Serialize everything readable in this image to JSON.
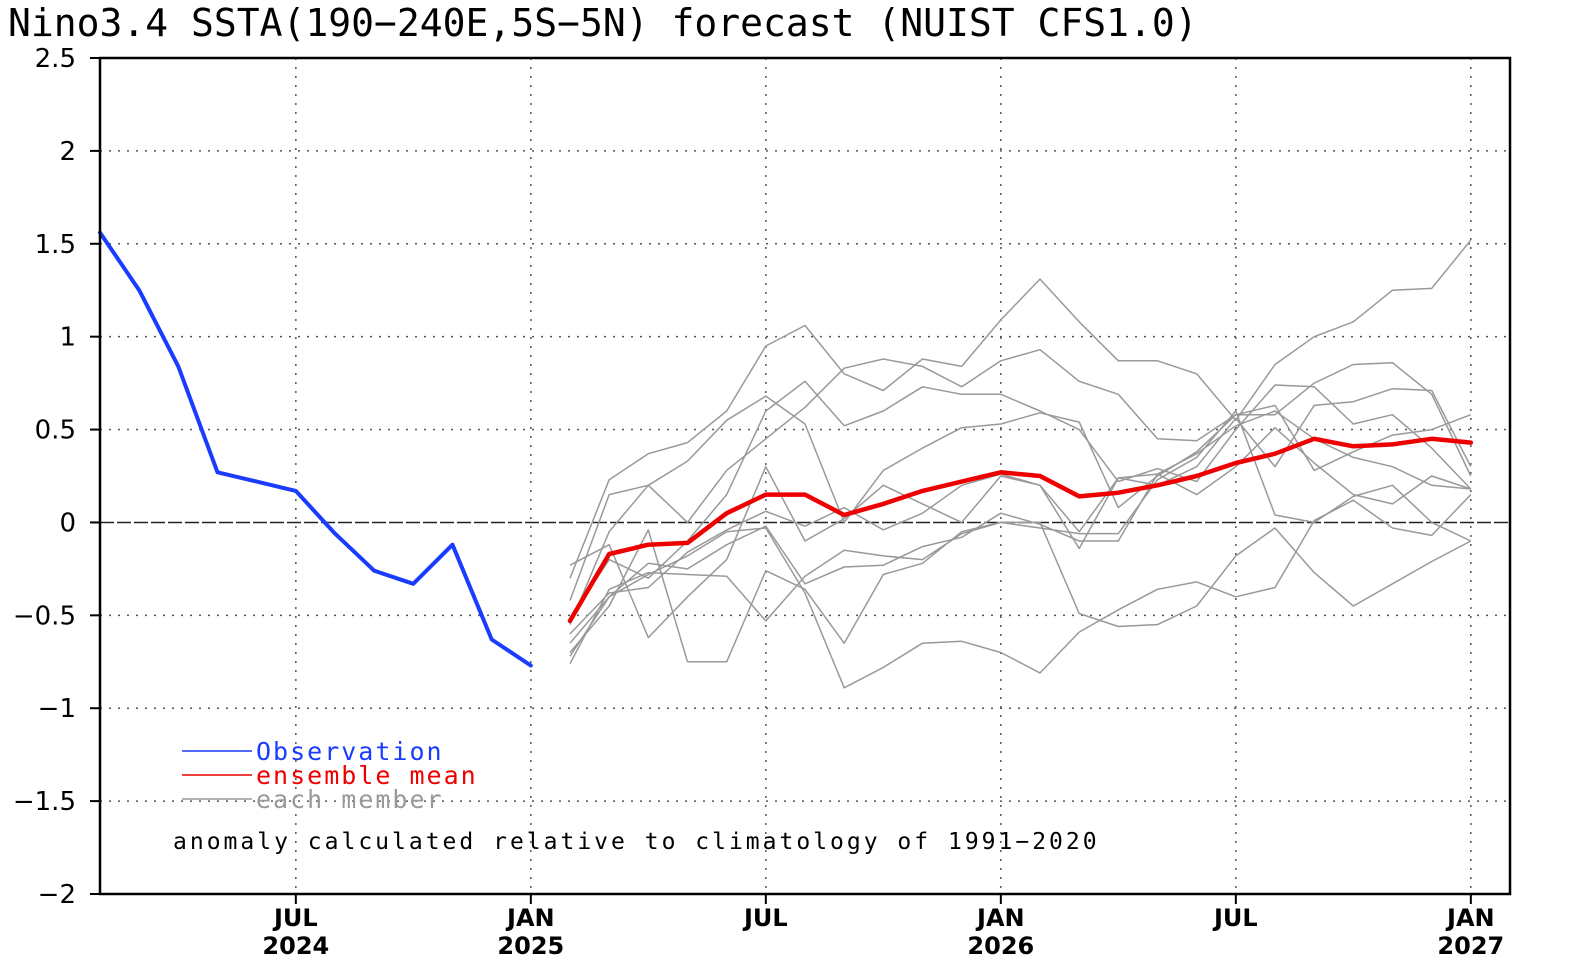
{
  "chart_data": {
    "type": "line",
    "title": "Nino3.4 SSTA(190−240E,5S−5N) forecast (NUIST CFS1.0)",
    "ylim": [
      -2,
      2.5
    ],
    "yticks": [
      {
        "value": 2.5,
        "label": "2.5"
      },
      {
        "value": 2,
        "label": "2"
      },
      {
        "value": 1.5,
        "label": "1.5"
      },
      {
        "value": 1,
        "label": "1"
      },
      {
        "value": 0.5,
        "label": "0.5"
      },
      {
        "value": 0,
        "label": "0"
      },
      {
        "value": -0.5,
        "label": "−0.5"
      },
      {
        "value": -1,
        "label": "−1"
      },
      {
        "value": -1.5,
        "label": "−1.5"
      },
      {
        "value": -2,
        "label": "−2"
      }
    ],
    "xlim": [
      "2024-02",
      "2027-02"
    ],
    "xticks": [
      {
        "month": "2024-07",
        "label": "JUL",
        "year": "2024"
      },
      {
        "month": "2025-01",
        "label": "JAN",
        "year": "2025"
      },
      {
        "month": "2025-07",
        "label": "JUL",
        "year": ""
      },
      {
        "month": "2026-01",
        "label": "JAN",
        "year": "2026"
      },
      {
        "month": "2026-07",
        "label": "JUL",
        "year": ""
      },
      {
        "month": "2027-01",
        "label": "JAN",
        "year": "2027"
      }
    ],
    "grid": true,
    "zero_line": true,
    "months": [
      "2024-02",
      "2024-03",
      "2024-04",
      "2024-05",
      "2024-06",
      "2024-07",
      "2024-08",
      "2024-09",
      "2024-10",
      "2024-11",
      "2024-12",
      "2025-01",
      "2025-02",
      "2025-03",
      "2025-04",
      "2025-05",
      "2025-06",
      "2025-07",
      "2025-08",
      "2025-09",
      "2025-10",
      "2025-11",
      "2025-12",
      "2026-01",
      "2026-02",
      "2026-03",
      "2026-04",
      "2026-05",
      "2026-06",
      "2026-07",
      "2026-08",
      "2026-09",
      "2026-10",
      "2026-11",
      "2026-12",
      "2027-01"
    ],
    "series": [
      {
        "name": "Observation",
        "color": "#1a3cff",
        "width": 4,
        "values": [
          1.56,
          1.25,
          0.84,
          0.27,
          0.22,
          0.17,
          -0.06,
          -0.26,
          -0.33,
          -0.12,
          -0.63,
          -0.77,
          null,
          null,
          null,
          null,
          null,
          null,
          null,
          null,
          null,
          null,
          null,
          null,
          null,
          null,
          null,
          null,
          null,
          null,
          null,
          null,
          null,
          null,
          null,
          null
        ]
      },
      {
        "name": "ensemble mean",
        "color": "#ee0000",
        "width": 4.5,
        "values": [
          null,
          null,
          null,
          null,
          null,
          null,
          null,
          null,
          null,
          null,
          null,
          null,
          -0.53,
          -0.17,
          -0.12,
          -0.11,
          0.05,
          0.15,
          0.15,
          0.04,
          0.1,
          0.17,
          0.22,
          0.27,
          0.25,
          0.14,
          0.16,
          0.2,
          0.25,
          0.32,
          0.37,
          0.45,
          0.41,
          0.42,
          0.45,
          0.43
        ]
      },
      {
        "name": "each member",
        "color": "#999999",
        "width": 1.5,
        "members": [
          [
            null,
            null,
            null,
            null,
            null,
            null,
            null,
            null,
            null,
            null,
            null,
            null,
            -0.3,
            0.23,
            0.37,
            0.43,
            0.6,
            0.95,
            1.06,
            0.8,
            0.71,
            0.88,
            0.84,
            1.09,
            1.31,
            1.08,
            0.87,
            0.87,
            0.8,
            0.55,
            0.85,
            1.0,
            1.08,
            1.25,
            1.26,
            1.52
          ],
          [
            null,
            null,
            null,
            null,
            null,
            null,
            null,
            null,
            null,
            null,
            null,
            null,
            -0.42,
            0.15,
            0.2,
            0.0,
            0.28,
            0.45,
            0.62,
            0.83,
            0.88,
            0.84,
            0.73,
            0.87,
            0.93,
            0.76,
            0.69,
            0.45,
            0.44,
            0.58,
            0.58,
            0.75,
            0.85,
            0.86,
            0.69,
            0.25
          ],
          [
            null,
            null,
            null,
            null,
            null,
            null,
            null,
            null,
            null,
            null,
            null,
            null,
            -0.55,
            -0.05,
            0.2,
            0.33,
            0.55,
            0.68,
            0.53,
            0.0,
            0.28,
            0.4,
            0.51,
            0.53,
            0.59,
            0.54,
            0.08,
            0.25,
            0.38,
            0.58,
            0.63,
            0.28,
            0.38,
            0.47,
            0.5,
            0.58
          ],
          [
            null,
            null,
            null,
            null,
            null,
            null,
            null,
            null,
            null,
            null,
            null,
            null,
            -0.52,
            -0.2,
            -0.3,
            -0.1,
            0.15,
            0.6,
            0.76,
            0.52,
            0.6,
            0.73,
            0.69,
            0.69,
            0.6,
            0.5,
            0.22,
            0.29,
            0.22,
            0.5,
            0.74,
            0.73,
            0.53,
            0.58,
            0.4,
            0.18
          ],
          [
            null,
            null,
            null,
            null,
            null,
            null,
            null,
            null,
            null,
            null,
            null,
            null,
            -0.23,
            -0.12,
            -0.62,
            -0.4,
            -0.2,
            0.3,
            -0.1,
            0.02,
            0.2,
            0.1,
            0.0,
            0.25,
            0.2,
            -0.05,
            0.24,
            0.2,
            0.3,
            0.56,
            0.3,
            0.63,
            0.65,
            0.72,
            0.71,
            0.3
          ],
          [
            null,
            null,
            null,
            null,
            null,
            null,
            null,
            null,
            null,
            null,
            null,
            null,
            -0.6,
            -0.38,
            -0.35,
            -0.16,
            -0.04,
            0.06,
            -0.02,
            0.08,
            -0.04,
            0.05,
            0.2,
            0.26,
            0.2,
            -0.14,
            0.24,
            0.26,
            0.37,
            0.52,
            0.6,
            0.45,
            0.35,
            0.3,
            0.2,
            0.18
          ],
          [
            null,
            null,
            null,
            null,
            null,
            null,
            null,
            null,
            null,
            null,
            null,
            null,
            -0.65,
            -0.4,
            -0.22,
            -0.25,
            -0.12,
            -0.02,
            -0.33,
            -0.24,
            -0.23,
            -0.13,
            -0.08,
            0.05,
            -0.01,
            -0.1,
            -0.1,
            0.26,
            0.15,
            0.3,
            0.51,
            0.32,
            0.15,
            0.1,
            0.25,
            0.18
          ],
          [
            null,
            null,
            null,
            null,
            null,
            null,
            null,
            null,
            null,
            null,
            null,
            null,
            -0.7,
            -0.45,
            -0.04,
            -0.75,
            -0.75,
            -0.26,
            -0.36,
            -0.65,
            -0.28,
            -0.22,
            -0.05,
            0.0,
            -0.03,
            -0.06,
            -0.06,
            0.23,
            0.35,
            0.6,
            0.04,
            0.0,
            0.14,
            0.2,
            0.0,
            -0.1
          ],
          [
            null,
            null,
            null,
            null,
            null,
            null,
            null,
            null,
            null,
            null,
            null,
            null,
            -0.76,
            -0.36,
            -0.27,
            -0.28,
            -0.29,
            -0.53,
            -0.29,
            -0.15,
            -0.18,
            -0.2,
            -0.06,
            0.0,
            0.0,
            -0.49,
            -0.56,
            -0.55,
            -0.45,
            -0.18,
            -0.03,
            -0.27,
            -0.45,
            -0.33,
            -0.21,
            -0.1
          ],
          [
            null,
            null,
            null,
            null,
            null,
            null,
            null,
            null,
            null,
            null,
            null,
            null,
            -0.72,
            -0.4,
            -0.28,
            -0.18,
            -0.05,
            -0.03,
            -0.38,
            -0.89,
            -0.78,
            -0.65,
            -0.64,
            -0.7,
            -0.81,
            -0.59,
            -0.47,
            -0.36,
            -0.32,
            -0.4,
            -0.35,
            0.01,
            0.12,
            -0.03,
            -0.07,
            0.15
          ]
        ]
      }
    ],
    "legend": [
      {
        "label": "Observation",
        "color": "#1a3cff"
      },
      {
        "label": "ensemble mean",
        "color": "#ee0000"
      },
      {
        "label": "each member",
        "color": "#999999"
      }
    ],
    "legend_position": "bottom-left",
    "annotation": "anomaly calculated relative to climatology of 1991−2020"
  }
}
